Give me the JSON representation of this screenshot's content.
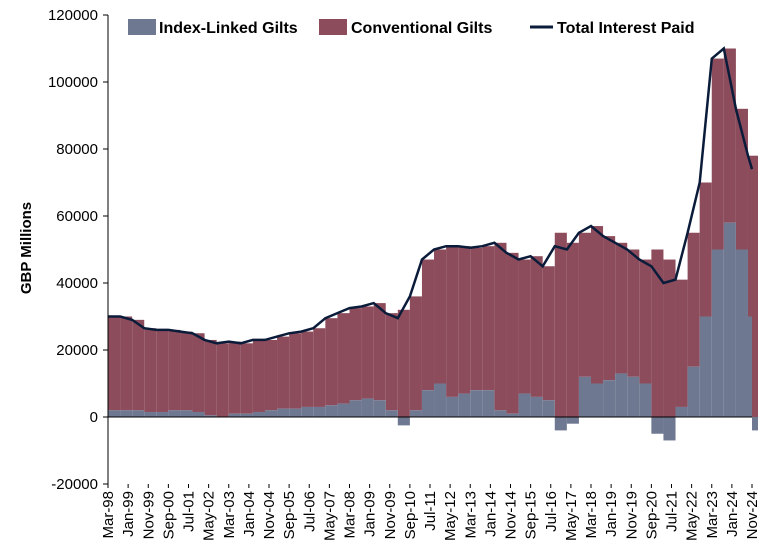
{
  "chart_data": {
    "type": "area",
    "title": "",
    "xlabel": "",
    "ylabel": "GBP Millions",
    "ylim": [
      -20000,
      120000
    ],
    "yticks": [
      -20000,
      0,
      20000,
      40000,
      60000,
      80000,
      100000,
      120000
    ],
    "ytick_labels": [
      "-20000",
      "0",
      "20000",
      "40000",
      "60000",
      "80000",
      "100000",
      "120000"
    ],
    "xtick_labels": [
      "Mar-98",
      "Jan-99",
      "Nov-99",
      "Sep-00",
      "Jul-01",
      "May-02",
      "Mar-03",
      "Jan-04",
      "Nov-04",
      "Sep-05",
      "Jul-06",
      "May-07",
      "Mar-08",
      "Jan-09",
      "Nov-09",
      "Sep-10",
      "Jul-11",
      "May-12",
      "Mar-13",
      "Jan-14",
      "Nov-14",
      "Sep-15",
      "Jul-16",
      "May-17",
      "Mar-18",
      "Jan-19",
      "Nov-19",
      "Sep-20",
      "Jul-21",
      "May-22",
      "Mar-23",
      "Jan-24",
      "Nov-24"
    ],
    "legend": {
      "placement": "top"
    },
    "grid": false,
    "x": [
      "1998-03",
      "1998-09",
      "1999-03",
      "1999-09",
      "2000-03",
      "2000-09",
      "2001-03",
      "2001-09",
      "2002-03",
      "2002-09",
      "2003-03",
      "2003-09",
      "2004-03",
      "2004-09",
      "2005-03",
      "2005-09",
      "2006-03",
      "2006-09",
      "2007-03",
      "2007-09",
      "2008-03",
      "2008-09",
      "2009-03",
      "2009-09",
      "2010-03",
      "2010-09",
      "2011-03",
      "2011-09",
      "2012-03",
      "2012-09",
      "2013-03",
      "2013-09",
      "2014-03",
      "2014-09",
      "2015-03",
      "2015-09",
      "2016-03",
      "2016-09",
      "2017-03",
      "2017-09",
      "2018-03",
      "2018-09",
      "2019-03",
      "2019-09",
      "2020-03",
      "2020-09",
      "2021-03",
      "2021-09",
      "2022-03",
      "2022-09",
      "2023-03",
      "2023-09",
      "2024-03",
      "2024-09",
      "2024-11"
    ],
    "series": [
      {
        "name": "Index-Linked Gilts",
        "kind": "bar",
        "color": "#6f7891",
        "values": [
          2000,
          2000,
          2000,
          1500,
          1500,
          2000,
          2000,
          1500,
          500,
          0,
          1000,
          1000,
          1500,
          2000,
          2500,
          2500,
          3000,
          3000,
          3500,
          4000,
          5000,
          5500,
          5000,
          2000,
          -2500,
          2000,
          8000,
          10000,
          6000,
          7000,
          8000,
          8000,
          2000,
          1000,
          7000,
          6000,
          5000,
          -4000,
          -2000,
          12000,
          10000,
          11000,
          13000,
          12000,
          10000,
          -5000,
          -7000,
          3000,
          15000,
          30000,
          50000,
          58000,
          50000,
          30000,
          -4000
        ]
      },
      {
        "name": "Conventional Gilts",
        "kind": "stack",
        "color": "#8c4c5c",
        "values": [
          28000,
          28000,
          27000,
          25000,
          24500,
          24000,
          23500,
          23500,
          22500,
          22000,
          21500,
          21000,
          21500,
          21000,
          21500,
          22500,
          22500,
          23500,
          26000,
          27000,
          27500,
          27500,
          29000,
          29000,
          32000,
          34000,
          39000,
          40000,
          45000,
          44000,
          42500,
          43000,
          50000,
          48000,
          40000,
          42000,
          40000,
          55000,
          52000,
          43000,
          47000,
          43000,
          39000,
          38000,
          37000,
          50000,
          47000,
          38000,
          40000,
          40000,
          57000,
          52000,
          42000,
          48000,
          78000
        ]
      },
      {
        "name": "Total Interest Paid",
        "kind": "line",
        "color": "#0b1c3a",
        "values": [
          30000,
          30000,
          29000,
          26500,
          26000,
          26000,
          25500,
          25000,
          23000,
          22000,
          22500,
          22000,
          23000,
          23000,
          24000,
          25000,
          25500,
          26500,
          29500,
          31000,
          32500,
          33000,
          34000,
          31000,
          29500,
          36000,
          47000,
          50000,
          51000,
          51000,
          50500,
          51000,
          52000,
          49000,
          47000,
          48000,
          45000,
          51000,
          50000,
          55000,
          57000,
          54000,
          52000,
          50000,
          47000,
          45000,
          40000,
          41000,
          55000,
          70000,
          107000,
          110000,
          92000,
          78000,
          74000
        ]
      }
    ]
  }
}
